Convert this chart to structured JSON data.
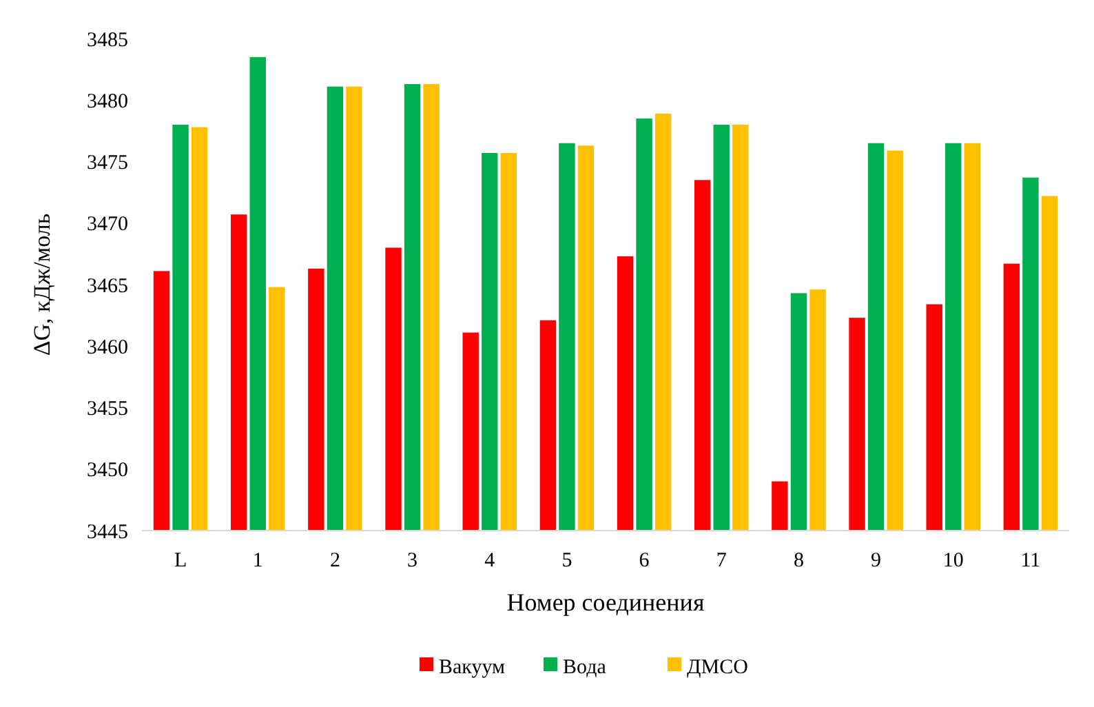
{
  "chart_data": {
    "type": "bar",
    "xlabel": "Номер соединения",
    "ylabel": "ΔG, кДж/моль",
    "categories": [
      "L",
      "1",
      "2",
      "3",
      "4",
      "5",
      "6",
      "7",
      "8",
      "9",
      "10",
      "11"
    ],
    "series": [
      {
        "name": "Вакуум",
        "color": "#ff0000",
        "values": [
          3466.1,
          3470.7,
          3466.3,
          3468.0,
          3461.1,
          3462.1,
          3467.3,
          3473.5,
          3449.0,
          3462.3,
          3463.4,
          3466.7
        ]
      },
      {
        "name": "Вода",
        "color": "#00b050",
        "values": [
          3478.0,
          3483.5,
          3481.1,
          3481.3,
          3475.7,
          3476.5,
          3478.5,
          3478.0,
          3464.3,
          3476.5,
          3476.5,
          3473.7
        ]
      },
      {
        "name": "ДМСО",
        "color": "#ffc000",
        "values": [
          3477.8,
          3464.8,
          3481.1,
          3481.3,
          3475.7,
          3476.3,
          3478.9,
          3478.0,
          3464.6,
          3475.9,
          3476.5,
          3472.2
        ]
      }
    ],
    "ylim": [
      3445,
      3485
    ],
    "yticks": [
      3445,
      3450,
      3455,
      3460,
      3465,
      3470,
      3475,
      3480,
      3485
    ],
    "grid": false,
    "legend": "bottom"
  }
}
